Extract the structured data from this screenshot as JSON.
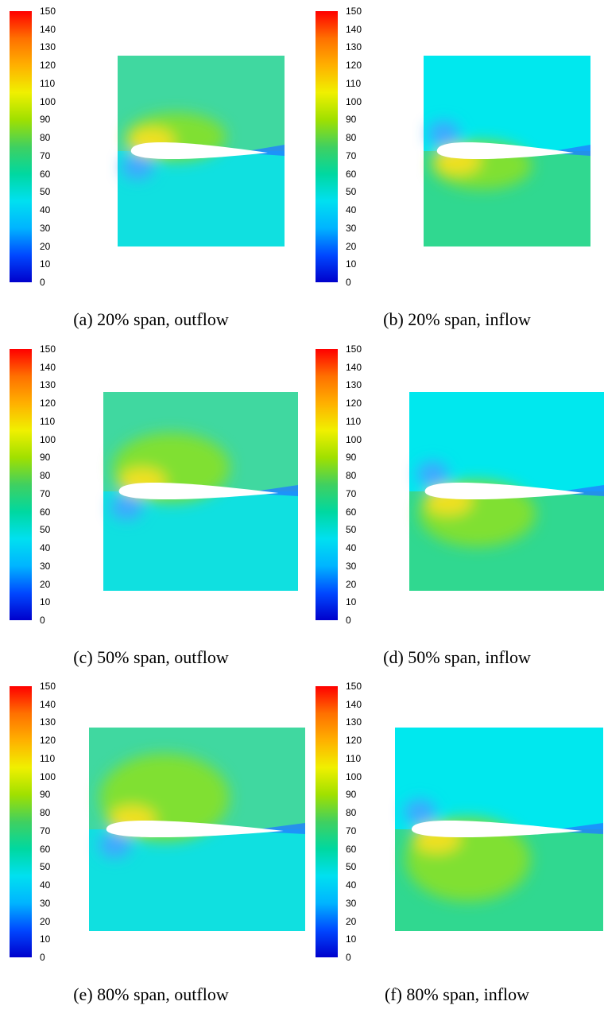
{
  "colorbar": {
    "ticks": [
      "150",
      "140",
      "130",
      "120",
      "110",
      "100",
      "90",
      "80",
      "70",
      "60",
      "50",
      "40",
      "30",
      "20",
      "10",
      "0"
    ],
    "colors": [
      "#0000cc",
      "#0048ff",
      "#00b4ff",
      "#00e0f0",
      "#00d8a0",
      "#40d060",
      "#a0e000",
      "#f0f000",
      "#ffb000",
      "#ff7000",
      "#ff0000"
    ]
  },
  "panels": [
    {
      "caption": "(a) 20% span, outflow",
      "mode": "outflow",
      "intensity": 0.45
    },
    {
      "caption": "(b) 20% span, inflow",
      "mode": "inflow",
      "intensity": 0.45
    },
    {
      "caption": "(c) 50% span, outflow",
      "mode": "outflow",
      "intensity": 0.75
    },
    {
      "caption": "(d) 50% span, inflow",
      "mode": "inflow",
      "intensity": 0.7
    },
    {
      "caption": "(e) 80% span, outflow",
      "mode": "outflow",
      "intensity": 1.0
    },
    {
      "caption": "(f) 80% span, inflow",
      "mode": "inflow",
      "intensity": 0.95
    }
  ]
}
